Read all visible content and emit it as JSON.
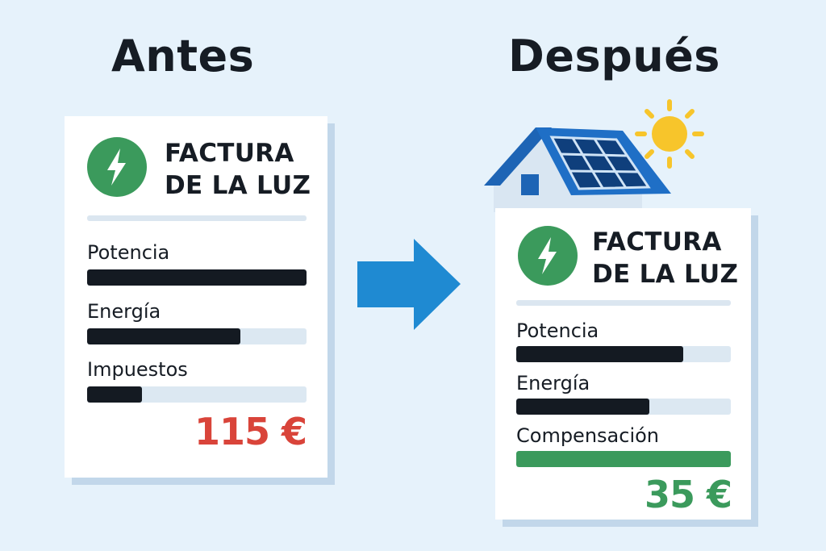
{
  "before": {
    "heading": "Antes",
    "card": {
      "title_line1": "FACTURA",
      "title_line2": "DE LA LUZ",
      "rows": [
        {
          "label": "Potencia",
          "fill": 1.0,
          "color": "#141a22"
        },
        {
          "label": "Energía",
          "fill": 0.7,
          "color": "#141a22"
        },
        {
          "label": "Impuestos",
          "fill": 0.25,
          "color": "#141a22"
        }
      ],
      "total": "115 €",
      "total_color": "#d9443a"
    }
  },
  "after": {
    "heading": "Después",
    "card": {
      "title_line1": "FACTURA",
      "title_line2": "DE LA LUZ",
      "rows": [
        {
          "label": "Potencia",
          "fill": 0.78,
          "color": "#141a22"
        },
        {
          "label": "Energía",
          "fill": 0.62,
          "color": "#141a22"
        },
        {
          "label": "Compensación",
          "fill": 1.0,
          "color": "#3b9a5c"
        }
      ],
      "total": "35 €",
      "total_color": "#3b9a5c"
    }
  },
  "icons": {
    "bolt": "lightning-bolt-icon",
    "arrow": "arrow-right-icon",
    "house": "solar-house-icon",
    "sun": "sun-icon"
  },
  "colors": {
    "background": "#e6f2fb",
    "accent_blue": "#1f8ad2",
    "green": "#3b9a5c",
    "red": "#d9443a"
  }
}
